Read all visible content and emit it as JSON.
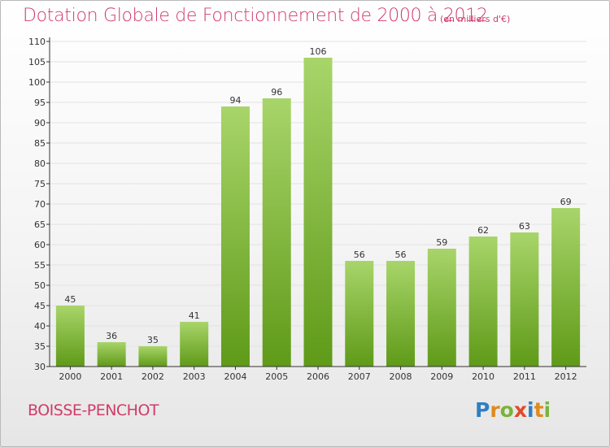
{
  "header": {
    "title": "Dotation Globale de Fonctionnement de 2000 à 2012",
    "subtitle": "(en milliers d'€)"
  },
  "footer": {
    "commune": "BOISSE-PENCHOT",
    "logo": {
      "letters": [
        "P",
        "r",
        "o",
        "x",
        "i",
        "t",
        "i"
      ],
      "colors": [
        "#2f7fc1",
        "#e08a1e",
        "#7ab33b",
        "#e24a2a",
        "#2f7fc1",
        "#e08a1e",
        "#7ab33b"
      ]
    }
  },
  "colors": {
    "title": "#d23a6a",
    "bar_light": "#a8d56a",
    "bar_dark": "#5f9a18",
    "grid": "#e2e2e2",
    "axis": "#333333"
  },
  "chart_data": {
    "type": "bar",
    "categories": [
      "2000",
      "2001",
      "2002",
      "2003",
      "2004",
      "2005",
      "2006",
      "2007",
      "2008",
      "2009",
      "2010",
      "2011",
      "2012"
    ],
    "values": [
      45,
      36,
      35,
      41,
      94,
      96,
      106,
      56,
      56,
      59,
      62,
      63,
      69
    ],
    "data_labels": [
      "45",
      "36",
      "35",
      "41",
      "94",
      "96",
      "106",
      "56",
      "56",
      "59",
      "62",
      "63",
      "69"
    ],
    "y_ticks": [
      30,
      35,
      40,
      45,
      50,
      55,
      60,
      65,
      70,
      75,
      80,
      85,
      90,
      95,
      100,
      105,
      110
    ],
    "ylim": [
      30,
      110
    ],
    "grid": true
  }
}
